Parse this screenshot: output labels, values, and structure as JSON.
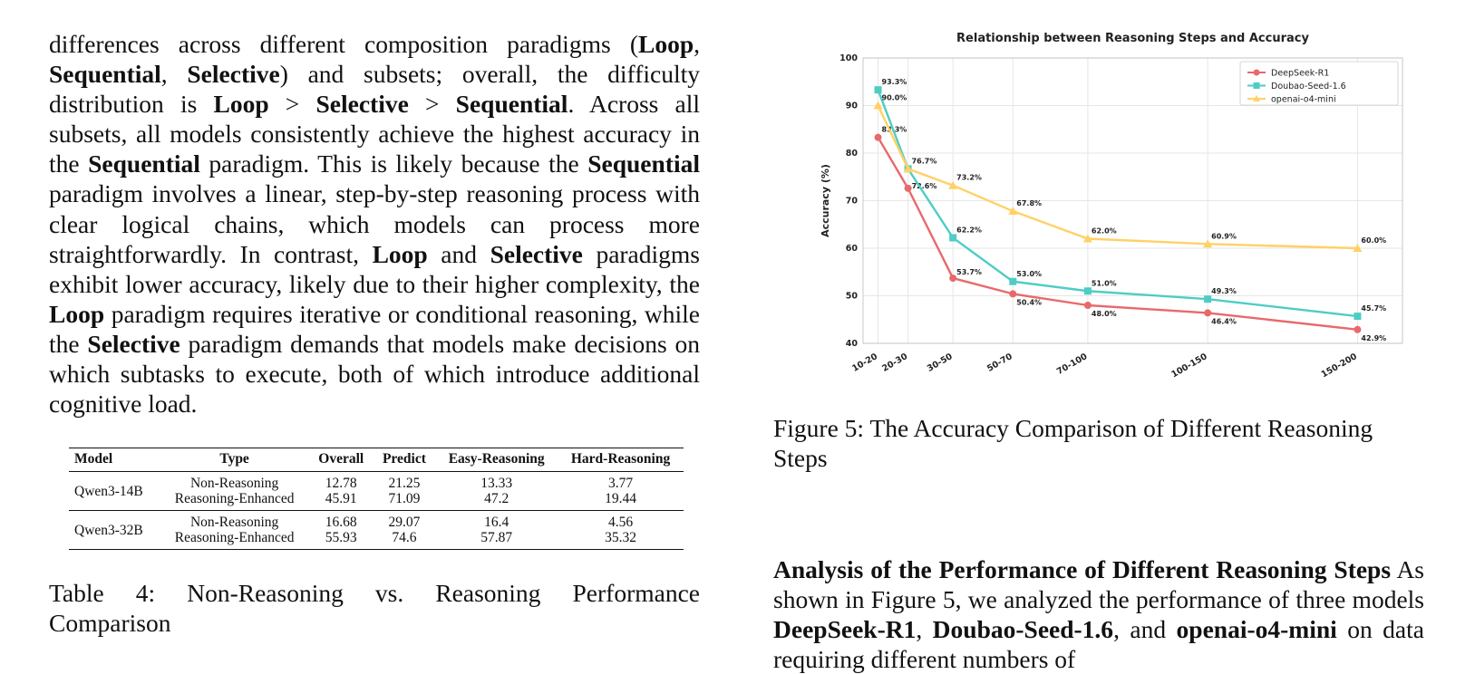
{
  "left_paragraph": {
    "s1": "differences across different composition paradigms (",
    "loop1": "Loop",
    "c1": ", ",
    "seq1": "Sequential",
    "c2": ", ",
    "sel1": "Selective",
    "s2": ") and subsets; overall, the difficulty distribution is ",
    "loop2": "Loop",
    "gt1": " > ",
    "sel2": "Selective",
    "gt2": " > ",
    "seq2": "Sequential",
    "s3": ". Across all subsets, all models consistently achieve the highest accuracy in the ",
    "seq3": "Sequential",
    "s4": " paradigm. This is likely because the ",
    "seq4": "Sequential",
    "s5": " paradigm involves a linear, step-by-step reasoning process with clear logical chains, which models can process more straightforwardly. In contrast, ",
    "loop3": "Loop",
    "s6": " and ",
    "sel3": "Selective",
    "s7": " paradigms exhibit lower accuracy, likely due to their higher complexity, the ",
    "loop4": "Loop",
    "s8": " paradigm requires iterative or conditional reasoning, while the ",
    "sel4": "Selective",
    "s9": " paradigm demands that models make decisions on which subtasks to execute, both of which introduce additional cognitive load."
  },
  "table4": {
    "headers": [
      "Model",
      "Type",
      "Overall",
      "Predict",
      "Easy-Reasoning",
      "Hard-Reasoning"
    ],
    "groups": [
      {
        "model": "Qwen3-14B",
        "rows": [
          [
            "Non-Reasoning",
            "12.78",
            "21.25",
            "13.33",
            "3.77"
          ],
          [
            "Reasoning-Enhanced",
            "45.91",
            "71.09",
            "47.2",
            "19.44"
          ]
        ]
      },
      {
        "model": "Qwen3-32B",
        "rows": [
          [
            "Non-Reasoning",
            "16.68",
            "29.07",
            "16.4",
            "4.56"
          ],
          [
            "Reasoning-Enhanced",
            "55.93",
            "74.6",
            "57.87",
            "35.32"
          ]
        ]
      }
    ],
    "caption": "Table 4: Non-Reasoning vs. Reasoning Performance Comparison"
  },
  "figure5": {
    "caption": "Figure 5: The Accuracy Comparison of Different Reasoning Steps"
  },
  "chart_data": {
    "type": "line",
    "title": "Relationship between Reasoning Steps and Accuracy",
    "xlabel": "",
    "ylabel": "Accuracy (%)",
    "ylim": [
      40,
      100
    ],
    "yticks": [
      40,
      50,
      60,
      70,
      80,
      90,
      100
    ],
    "categories": [
      "10-20",
      "20-30",
      "30-50",
      "50-70",
      "70-100",
      "100-150",
      "150-200"
    ],
    "x": [
      15,
      25,
      40,
      60,
      85,
      125,
      175
    ],
    "xlim": [
      10,
      190
    ],
    "grid": true,
    "legend_position": "top-right",
    "series": [
      {
        "name": "DeepSeek-R1",
        "color": "#e8696b",
        "marker": "circle",
        "values": [
          83.3,
          72.6,
          53.7,
          50.4,
          48.0,
          46.4,
          42.9
        ],
        "labels": [
          "83.3%",
          "72.6%",
          "53.7%",
          "50.4%",
          "48.0%",
          "46.4%",
          "42.9%"
        ]
      },
      {
        "name": "Doubao-Seed-1.6",
        "color": "#4ecdc4",
        "marker": "square",
        "values": [
          93.3,
          76.7,
          62.2,
          53.0,
          51.0,
          49.3,
          45.7
        ],
        "labels": [
          "93.3%",
          "76.7%",
          "62.2%",
          "53.0%",
          "51.0%",
          "49.3%",
          "45.7%"
        ]
      },
      {
        "name": "openai-o4-mini",
        "color": "#ffd166",
        "marker": "triangle",
        "values": [
          90.0,
          76.7,
          73.2,
          67.8,
          62.0,
          60.9,
          60.0
        ],
        "labels": [
          "90.0%",
          "",
          "73.2%",
          "67.8%",
          "62.0%",
          "60.9%",
          "60.0%"
        ]
      }
    ]
  },
  "right_paragraph": {
    "heading": "Analysis of the Performance of Different Reasoning Steps",
    "t1": "  As shown in Figure 5, we analyzed the performance of three models ",
    "m1": "DeepSeek-R1",
    "c1": ", ",
    "m2": "Doubao-Seed-1.6",
    "c2": ", and ",
    "m3": "openai-o4-mini",
    "t2": " on data requiring different numbers of"
  }
}
